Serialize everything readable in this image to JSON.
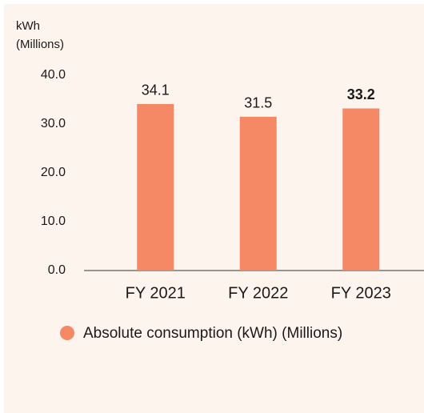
{
  "chart_data": {
    "type": "bar",
    "ylabel": [
      "kWh",
      "(Millions)"
    ],
    "categories": [
      "FY 2021",
      "FY 2022",
      "FY 2023"
    ],
    "series": [
      {
        "name": "Absolute consumption (kWh) (Millions)",
        "color": "#f58966",
        "values": [
          34.1,
          31.5,
          33.2
        ]
      }
    ],
    "highlight_index": 2,
    "ylim": [
      0,
      40
    ],
    "yticks": [
      {
        "value": 0,
        "label": "0.0"
      },
      {
        "value": 10,
        "label": "10.0"
      },
      {
        "value": 20,
        "label": "20.0"
      },
      {
        "value": 30,
        "label": "30.0"
      },
      {
        "value": 40,
        "label": "40.0"
      }
    ],
    "grid": false
  }
}
